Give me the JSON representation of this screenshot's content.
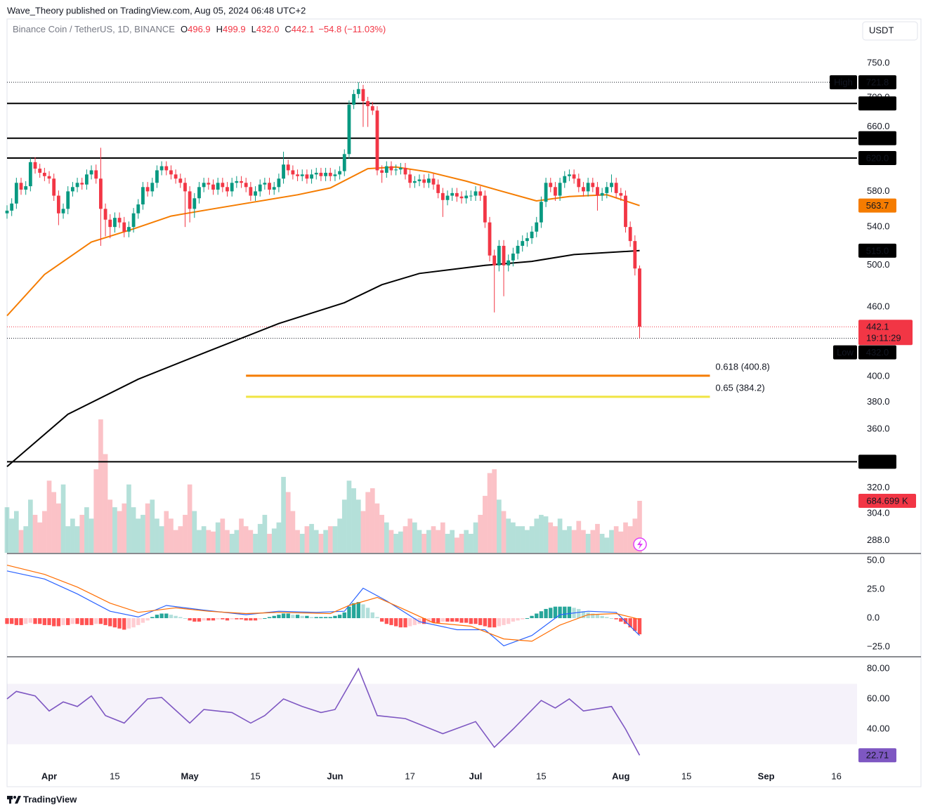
{
  "header": {
    "publisher_line": "Wave_Theory published on TradingView.com, Aug 05, 2024 06:48 UTC+2",
    "currency": "USDT",
    "brand": "TradingView"
  },
  "chart_data": [
    {
      "type": "candlestick",
      "title": "Binance Coin / TetherUS, 1D, BINANCE",
      "legend": [
        {
          "label": "O",
          "value": 496.9
        },
        {
          "label": "H",
          "value": 499.9
        },
        {
          "label": "L",
          "value": {
            "value": 432,
            "label": "432.0"
          }
        },
        {
          "label": "C",
          "value": 442.1
        }
      ],
      "change": "−54.8 (−11.03%)",
      "countdown": "19:11:29",
      "log_scale": true,
      "up_color": "#089981",
      "down_color": "#f23645",
      "open": [
        555,
        558,
        566,
        590,
        582,
        586,
        615,
        607,
        602,
        598,
        595,
        575,
        555,
        560,
        580,
        585,
        590,
        588,
        600,
        605,
        595,
        560,
        548,
        540,
        550,
        545,
        535,
        540,
        555,
        565,
        585,
        580,
        590,
        605,
        610,
        605,
        600,
        595,
        590,
        580,
        560,
        572,
        585,
        590,
        588,
        582,
        590,
        585,
        580,
        590,
        592,
        590,
        585,
        575,
        580,
        588,
        590,
        582,
        585,
        595,
        612,
        605,
        600,
        598,
        600,
        595,
        600,
        602,
        598,
        602,
        598,
        600,
        604,
        625,
        690,
        705,
        712,
        695,
        688,
        682,
        605,
        602,
        610,
        605,
        606,
        608,
        600,
        590,
        592,
        594,
        590,
        595,
        588,
        578,
        570,
        575,
        578,
        574,
        572,
        575,
        575,
        580,
        575,
        545,
        510,
        500,
        520,
        500,
        505,
        512,
        520,
        525,
        528,
        535,
        545,
        568,
        590,
        585,
        575,
        590,
        598,
        600,
        595,
        585,
        580,
        590,
        585,
        575,
        578,
        585,
        590,
        578,
        575,
        540,
        525,
        496.9
      ],
      "high": [
        564,
        572,
        596,
        596,
        592,
        620,
        621,
        613,
        608,
        604,
        601,
        581,
        566,
        586,
        591,
        596,
        596,
        606,
        611,
        612,
        633,
        566,
        554,
        556,
        556,
        551,
        546,
        561,
        571,
        591,
        591,
        596,
        611,
        616,
        616,
        611,
        606,
        601,
        596,
        586,
        578,
        591,
        596,
        596,
        594,
        596,
        596,
        591,
        596,
        598,
        598,
        596,
        591,
        586,
        594,
        596,
        596,
        591,
        601,
        628,
        618,
        611,
        606,
        606,
        606,
        606,
        608,
        608,
        608,
        608,
        606,
        610,
        631,
        696,
        711,
        721.8,
        718,
        701,
        694,
        688,
        611,
        616,
        616,
        612,
        614,
        614,
        606,
        598,
        600,
        600,
        601,
        601,
        594,
        584,
        581,
        584,
        584,
        580,
        581,
        581,
        586,
        586,
        581,
        551,
        516,
        526,
        526,
        511,
        518,
        526,
        531,
        534,
        541,
        551,
        574,
        596,
        596,
        591,
        596,
        604,
        606,
        606,
        601,
        591,
        596,
        596,
        591,
        584,
        591,
        600,
        596,
        584,
        581,
        546,
        531,
        499.9
      ],
      "low": [
        549,
        552,
        560,
        576,
        576,
        580,
        601,
        596,
        592,
        589,
        569,
        542,
        549,
        554,
        574,
        579,
        582,
        582,
        594,
        589,
        520,
        530,
        528,
        534,
        539,
        529,
        529,
        534,
        549,
        559,
        574,
        574,
        584,
        599,
        599,
        594,
        589,
        584,
        540,
        545,
        550,
        566,
        579,
        582,
        576,
        576,
        579,
        574,
        574,
        584,
        584,
        579,
        569,
        569,
        574,
        582,
        576,
        576,
        579,
        589,
        599,
        594,
        592,
        592,
        589,
        589,
        594,
        592,
        592,
        592,
        592,
        594,
        598,
        619,
        684,
        699,
        660,
        660,
        676,
        599,
        590,
        596,
        599,
        599,
        600,
        594,
        584,
        584,
        586,
        584,
        584,
        582,
        572,
        551,
        564,
        569,
        568,
        566,
        566,
        569,
        569,
        569,
        539,
        504,
        455,
        494,
        470,
        494,
        499,
        506,
        514,
        519,
        522,
        529,
        539,
        562,
        579,
        569,
        569,
        584,
        592,
        589,
        579,
        574,
        574,
        579,
        558,
        569,
        572,
        579,
        572,
        569,
        534,
        519,
        490,
        432
      ],
      "close": [
        558,
        566,
        590,
        582,
        586,
        615,
        607,
        602,
        598,
        595,
        575,
        555,
        560,
        580,
        585,
        590,
        588,
        600,
        605,
        595,
        560,
        548,
        540,
        550,
        545,
        535,
        540,
        555,
        565,
        585,
        580,
        590,
        605,
        610,
        605,
        600,
        595,
        590,
        580,
        560,
        572,
        585,
        590,
        588,
        582,
        590,
        585,
        580,
        590,
        592,
        590,
        585,
        575,
        580,
        588,
        590,
        582,
        585,
        595,
        612,
        605,
        600,
        598,
        600,
        595,
        600,
        602,
        598,
        602,
        598,
        600,
        604,
        625,
        690,
        705,
        712,
        695,
        688,
        682,
        605,
        602,
        610,
        605,
        606,
        608,
        600,
        590,
        592,
        594,
        590,
        595,
        588,
        578,
        570,
        575,
        578,
        574,
        572,
        575,
        575,
        580,
        575,
        545,
        510,
        500,
        520,
        500,
        505,
        512,
        520,
        525,
        528,
        535,
        545,
        568,
        590,
        585,
        575,
        590,
        598,
        600,
        595,
        585,
        580,
        590,
        585,
        575,
        578,
        585,
        590,
        578,
        575,
        540,
        525,
        496.9,
        442.1
      ],
      "xlim": [
        0,
        181.4
      ],
      "xticks": [
        {
          "value": 9,
          "label": "Apr"
        },
        {
          "value": 23,
          "label": "15"
        },
        {
          "value": 39,
          "label": "May"
        },
        {
          "value": 53,
          "label": "15"
        },
        {
          "value": 70,
          "label": "Jun"
        },
        {
          "value": 86,
          "label": "17"
        },
        {
          "value": 100,
          "label": "Jul"
        },
        {
          "value": 114,
          "label": "15"
        },
        {
          "value": 131,
          "label": "Aug"
        },
        {
          "value": 145,
          "label": "15"
        },
        {
          "value": 162,
          "label": "Sep"
        },
        {
          "value": 177,
          "label": "16"
        }
      ],
      "ylim": [
        281,
        816
      ],
      "yticks": [
        {
          "value": 750,
          "label": "750.0"
        },
        {
          "value": 700,
          "label": "700.0"
        },
        {
          "value": 660,
          "label": "660.0"
        },
        {
          "value": 580,
          "label": "580.0"
        },
        {
          "value": 540,
          "label": "540.0"
        },
        {
          "value": 500,
          "label": "500.0"
        },
        {
          "value": 460,
          "label": "460.0"
        },
        {
          "value": 400,
          "label": "400.0"
        },
        {
          "value": 380,
          "label": "380.0"
        },
        {
          "value": 360,
          "label": "360.0"
        },
        {
          "value": 320,
          "label": "320.0"
        },
        {
          "value": 304,
          "label": "304.0"
        },
        {
          "value": 288,
          "label": "288.0"
        }
      ],
      "levels": [
        {
          "value": 691.8
        },
        {
          "value": 645.2
        },
        {
          "value": 620,
          "label": "620.0"
        },
        {
          "value": 337.3
        }
      ],
      "high_marker": {
        "title": "High",
        "value": 721.8
      },
      "low_marker": {
        "title": "Low",
        "value": 432,
        "label": "432.0"
      },
      "moving_averages": [
        {
          "color": "#f57c00",
          "x": [
            0,
            8,
            18,
            27,
            35,
            44,
            53,
            62,
            69,
            77,
            83,
            90,
            98,
            105,
            113,
            120,
            128,
            135
          ],
          "values": [
            452,
            491,
            524,
            538,
            552,
            560,
            568,
            576,
            584,
            607,
            609,
            603,
            592,
            581,
            569,
            574,
            576,
            563.7
          ],
          "last_label": "563.7"
        },
        {
          "color": "#000000",
          "x": [
            0,
            13,
            28,
            43,
            58,
            72,
            80,
            88,
            102,
            112,
            121,
            135
          ],
          "values": [
            334,
            371,
            398,
            421,
            445,
            464,
            481,
            492,
            500,
            504,
            511,
            515
          ],
          "last_label": "515.0"
        }
      ],
      "fib_levels": [
        {
          "label": "0.618 (400.8)",
          "value": 400.8,
          "color": "#f57c00",
          "from": 51,
          "to": 150
        },
        {
          "label": "0.65 (384.2)",
          "value": 384.2,
          "color": "#f0e442",
          "from": 51,
          "to": 150
        }
      ],
      "volume": {
        "ylim": [
          0,
          1850
        ],
        "up_color": "rgba(8,153,129,0.3)",
        "down_color": "rgba(242,54,69,0.3)",
        "last_label": "684.699 K",
        "values": [
          600,
          450,
          550,
          300,
          350,
          700,
          500,
          400,
          550,
          950,
          800,
          650,
          900,
          350,
          450,
          350,
          500,
          600,
          450,
          1100,
          1757,
          1300,
          700,
          600,
          550,
          650,
          900,
          600,
          450,
          500,
          650,
          700,
          450,
          350,
          550,
          450,
          300,
          350,
          500,
          900,
          550,
          300,
          350,
          300,
          280,
          400,
          450,
          300,
          250,
          300,
          450,
          350,
          300,
          250,
          380,
          500,
          250,
          320,
          400,
          1000,
          800,
          550,
          300,
          250,
          350,
          380,
          300,
          250,
          300,
          350,
          350,
          450,
          700,
          950,
          850,
          700,
          550,
          800,
          850,
          650,
          500,
          400,
          300,
          250,
          280,
          350,
          450,
          400,
          300,
          250,
          300,
          350,
          300,
          400,
          250,
          300,
          200,
          250,
          300,
          250,
          400,
          500,
          750,
          1050,
          1100,
          700,
          550,
          450,
          400,
          350,
          350,
          300,
          350,
          450,
          500,
          480,
          400,
          350,
          450,
          300,
          350,
          300,
          420,
          300,
          250,
          300,
          380,
          250,
          200,
          300,
          350,
          280,
          400,
          350,
          450,
          684.699
        ]
      }
    },
    {
      "type": "macd",
      "ylim": [
        -33.5,
        54.9
      ],
      "yticks": [
        {
          "value": 50,
          "label": "50.0"
        },
        {
          "value": 25,
          "label": "25.0"
        },
        {
          "value": 0,
          "label": "0.0"
        },
        {
          "value": -25,
          "label": "−25.0"
        }
      ],
      "histogram": [
        -5,
        -5,
        -6,
        -6,
        -5,
        -4,
        -5,
        -5,
        -6,
        -6,
        -7,
        -7,
        -6,
        -6,
        -5,
        -5,
        -6,
        -6,
        -6,
        -5,
        -5,
        -6,
        -7,
        -8,
        -9,
        -10,
        -9,
        -8,
        -6,
        -4,
        -2,
        1,
        3,
        4,
        4,
        3,
        2,
        1,
        0,
        -2,
        -3,
        -3,
        -2,
        -2,
        -2,
        -1,
        -1,
        -2,
        -1,
        -1,
        -1,
        -2,
        -2,
        -2,
        -1,
        0,
        1,
        2,
        3,
        4,
        4,
        3,
        3,
        2,
        2,
        1,
        1,
        1,
        1,
        1,
        2,
        3,
        5,
        10,
        13,
        14,
        12,
        9,
        5,
        1,
        -3,
        -5,
        -6,
        -7,
        -8,
        -8,
        -7,
        -6,
        -5,
        -5,
        -4,
        -4,
        -4,
        -3,
        -3,
        -3,
        -3,
        -4,
        -4,
        -5,
        -5,
        -6,
        -7,
        -8,
        -8,
        -7,
        -6,
        -5,
        -3,
        -2,
        -1,
        0,
        2,
        4,
        6,
        8,
        9,
        10,
        10,
        10,
        10,
        9,
        8,
        6,
        5,
        4,
        3,
        2,
        1,
        0,
        -1,
        -3,
        -5,
        -8,
        -11,
        -14
      ],
      "histogram_colors": [
        "#26a69a",
        "#b2dfdb",
        "#ff5252",
        "#ffcdd2"
      ],
      "series": [
        {
          "color": "#2962ff",
          "x": [
            0,
            8,
            15,
            22,
            28,
            34,
            42,
            51,
            58,
            66,
            72,
            76,
            81,
            88,
            96,
            102,
            106,
            112,
            118,
            124,
            130,
            135
          ],
          "values": [
            41,
            34,
            21,
            6,
            1,
            11,
            7,
            3,
            6,
            5,
            6,
            26,
            15,
            -3,
            -10,
            -10,
            -24,
            -15,
            3,
            6,
            5,
            -15
          ]
        },
        {
          "color": "#ff6d00",
          "x": [
            0,
            8,
            15,
            22,
            28,
            36,
            43,
            51,
            58,
            69,
            73,
            79,
            84,
            91,
            99,
            106,
            112,
            118,
            124,
            130,
            135
          ],
          "values": [
            46,
            38,
            27,
            13,
            5,
            9,
            6,
            4,
            5,
            4,
            11,
            18,
            9,
            -4,
            -7,
            -18,
            -20,
            -6,
            3,
            4,
            -1
          ]
        }
      ]
    },
    {
      "type": "rsi",
      "ylim": [
        13.5,
        87
      ],
      "yticks": [
        {
          "value": 80,
          "label": "80.00"
        },
        {
          "value": 60,
          "label": "60.00"
        },
        {
          "value": 40,
          "label": "40.00"
        }
      ],
      "band": [
        30,
        70
      ],
      "band_color": "rgba(126,87,194,0.08)",
      "series": [
        {
          "color": "#7e57c2",
          "x": [
            0,
            2,
            6,
            9,
            12,
            15,
            18,
            21,
            25,
            30,
            33,
            39,
            42,
            48,
            52,
            55,
            59,
            63,
            67,
            70,
            75,
            79,
            85,
            93,
            100,
            104,
            108,
            114,
            117,
            120,
            123,
            129,
            132,
            135
          ],
          "values": [
            60,
            65,
            62,
            52,
            58,
            55,
            62,
            49,
            44,
            60,
            61,
            44,
            53,
            51,
            44,
            49,
            60,
            55,
            51,
            53,
            80,
            49,
            47,
            37,
            45,
            28,
            40,
            59,
            54,
            60,
            52,
            55,
            40,
            22.71
          ]
        }
      ]
    }
  ]
}
